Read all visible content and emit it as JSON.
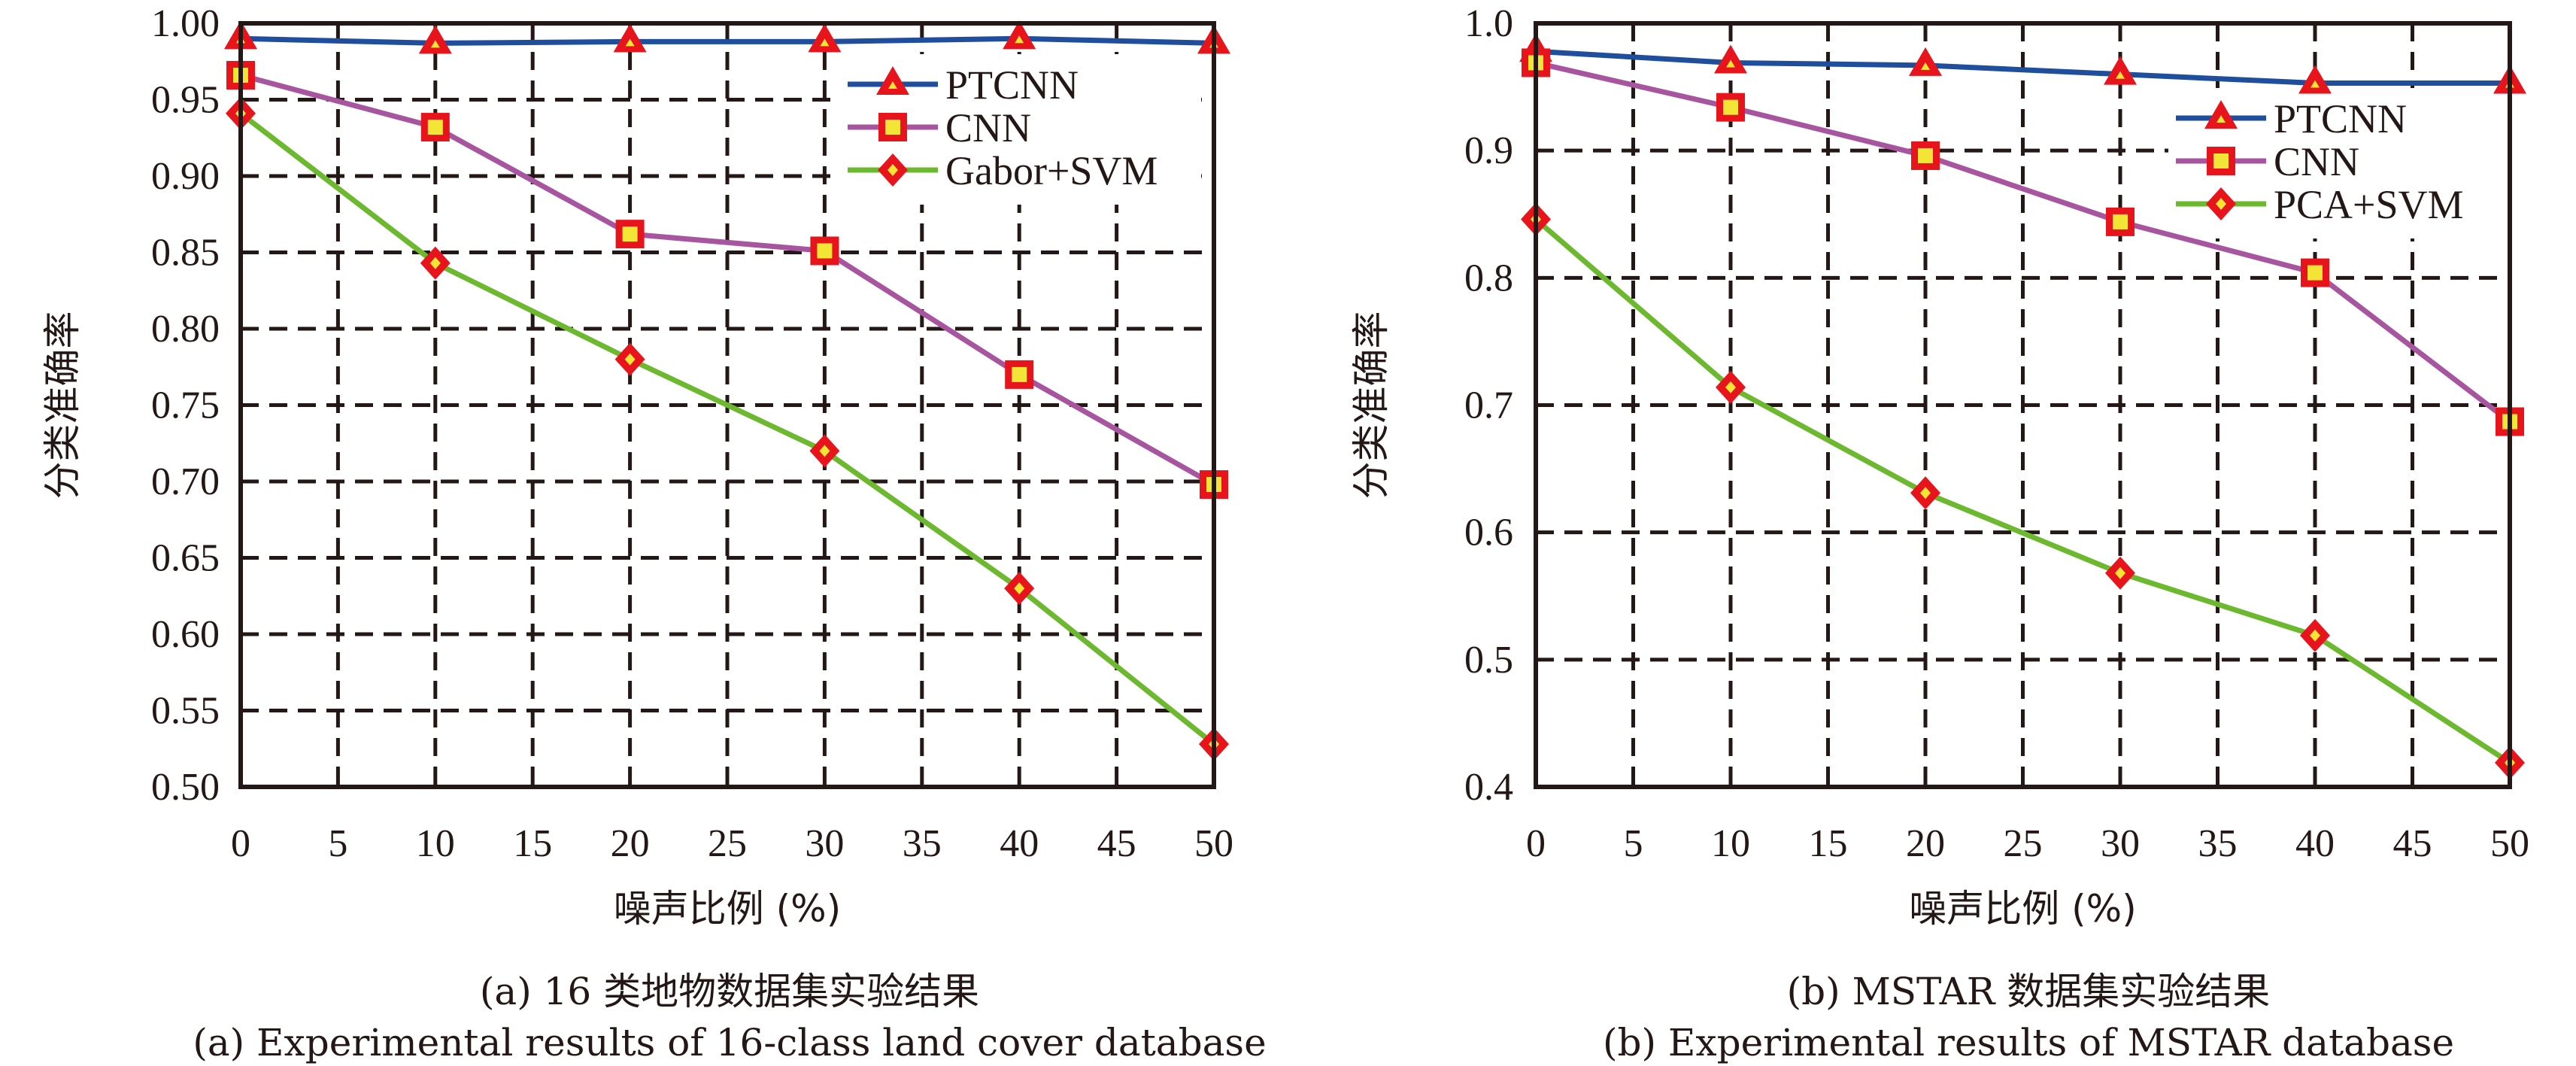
{
  "figure": {
    "panels": [
      {
        "id": "a",
        "caption_cn": "(a) 16 类地物数据集实验结果",
        "caption_en": "(a) Experimental results of 16-class land cover database"
      },
      {
        "id": "b",
        "caption_cn": "(b) MSTAR 数据集实验结果",
        "caption_en": "(b) Experimental results of MSTAR database"
      }
    ]
  },
  "colors": {
    "PTCNN": "#1f4e9c",
    "CNN": "#a855a0",
    "SVM": "#6cb82e",
    "marker_edge": "#e8141c",
    "marker_fill": "#f2e535",
    "grid": "#231815"
  },
  "chart_data": [
    {
      "type": "line",
      "title": "",
      "xlabel": "噪声比例 (%)",
      "ylabel": "分类准确率",
      "x": [
        0,
        10,
        20,
        30,
        40,
        50
      ],
      "xlim": [
        0,
        50
      ],
      "ylim": [
        0.5,
        1.0
      ],
      "xticks": [
        "0",
        "5",
        "10",
        "15",
        "20",
        "25",
        "30",
        "35",
        "40",
        "45",
        "50"
      ],
      "xtick_values": [
        0,
        5,
        10,
        15,
        20,
        25,
        30,
        35,
        40,
        45,
        50
      ],
      "yticks": [
        "0.50",
        "0.55",
        "0.60",
        "0.65",
        "0.70",
        "0.75",
        "0.80",
        "0.85",
        "0.90",
        "0.95",
        "1.00"
      ],
      "ytick_values": [
        0.5,
        0.55,
        0.6,
        0.65,
        0.7,
        0.75,
        0.8,
        0.85,
        0.9,
        0.95,
        1.0
      ],
      "grid": true,
      "legend_position": "top-right",
      "series": [
        {
          "name": "PTCNN",
          "marker": "triangle",
          "color_key": "PTCNN",
          "values": [
            0.99,
            0.987,
            0.988,
            0.988,
            0.99,
            0.987
          ]
        },
        {
          "name": "CNN",
          "marker": "square",
          "color_key": "CNN",
          "values": [
            0.966,
            0.932,
            0.862,
            0.851,
            0.77,
            0.698
          ]
        },
        {
          "name": "Gabor+SVM",
          "marker": "diamond",
          "color_key": "SVM",
          "values": [
            0.941,
            0.843,
            0.78,
            0.72,
            0.63,
            0.528
          ]
        }
      ]
    },
    {
      "type": "line",
      "title": "",
      "xlabel": "噪声比例 (%)",
      "ylabel": "分类准确率",
      "x": [
        0,
        10,
        20,
        30,
        40,
        50
      ],
      "xlim": [
        0,
        50
      ],
      "ylim": [
        0.4,
        1.0
      ],
      "xticks": [
        "0",
        "5",
        "10",
        "15",
        "20",
        "25",
        "30",
        "35",
        "40",
        "45",
        "50"
      ],
      "xtick_values": [
        0,
        5,
        10,
        15,
        20,
        25,
        30,
        35,
        40,
        45,
        50
      ],
      "yticks": [
        "0.4",
        "0.5",
        "0.6",
        "0.7",
        "0.8",
        "0.9",
        "1.0"
      ],
      "ytick_values": [
        0.4,
        0.5,
        0.6,
        0.7,
        0.8,
        0.9,
        1.0
      ],
      "grid": true,
      "legend_position": "top-right",
      "series": [
        {
          "name": "PTCNN",
          "marker": "triangle",
          "color_key": "PTCNN",
          "values": [
            0.978,
            0.969,
            0.967,
            0.96,
            0.953,
            0.953
          ]
        },
        {
          "name": "CNN",
          "marker": "square",
          "color_key": "CNN",
          "values": [
            0.969,
            0.934,
            0.896,
            0.844,
            0.804,
            0.687
          ]
        },
        {
          "name": "PCA+SVM",
          "marker": "diamond",
          "color_key": "SVM",
          "values": [
            0.846,
            0.714,
            0.631,
            0.568,
            0.519,
            0.419
          ]
        }
      ]
    }
  ]
}
